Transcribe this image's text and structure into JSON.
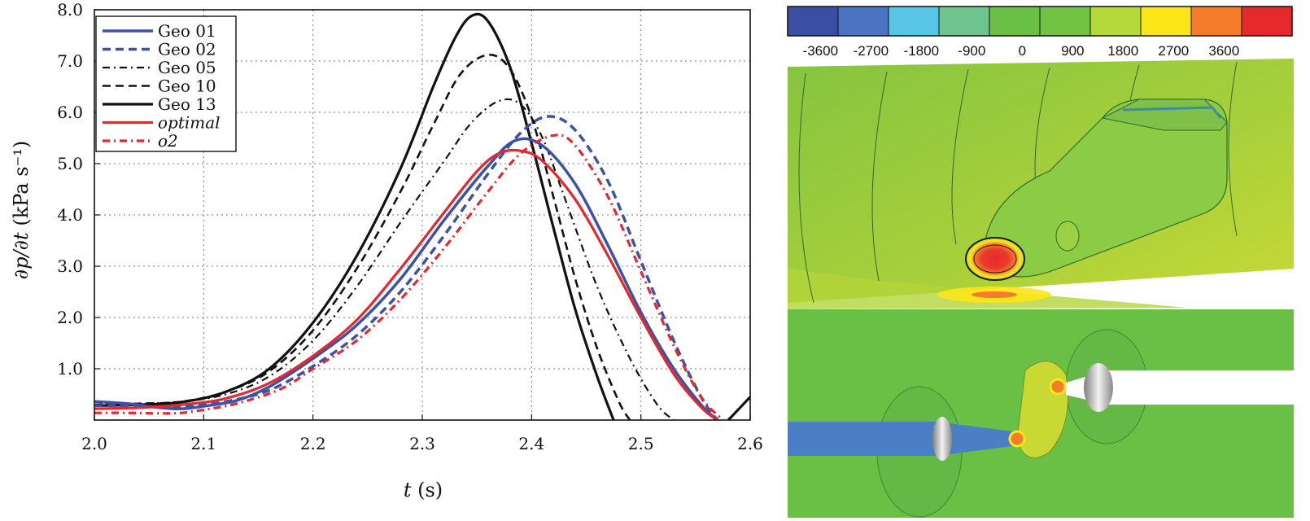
{
  "chart_data": {
    "type": "line",
    "xlabel_var": "t",
    "xlabel_unit": " (s)",
    "ylabel_var": "∂p/∂t",
    "ylabel_unit": " (kPa s⁻¹)",
    "xlim": [
      2.0,
      2.6
    ],
    "ylim": [
      0.0,
      8.0
    ],
    "grid": true,
    "legend_position": "top-left",
    "x_ticks": [
      "2.0",
      "2.1",
      "2.2",
      "2.3",
      "2.4",
      "2.5",
      "2.6"
    ],
    "y_ticks": [
      "1.0",
      "2.0",
      "3.0",
      "4.0",
      "5.0",
      "6.0",
      "7.0",
      "8.0"
    ],
    "series": [
      {
        "name": "Geo 01",
        "color": "#3c52a8",
        "dash": "solid",
        "width": 3.5,
        "points": [
          [
            2.0,
            0.36
          ],
          [
            2.03,
            0.32
          ],
          [
            2.06,
            0.24
          ],
          [
            2.08,
            0.22
          ],
          [
            2.1,
            0.27
          ],
          [
            2.13,
            0.38
          ],
          [
            2.16,
            0.65
          ],
          [
            2.2,
            1.2
          ],
          [
            2.24,
            1.85
          ],
          [
            2.28,
            2.75
          ],
          [
            2.32,
            3.9
          ],
          [
            2.36,
            4.95
          ],
          [
            2.385,
            5.45
          ],
          [
            2.41,
            5.35
          ],
          [
            2.44,
            4.6
          ],
          [
            2.47,
            3.4
          ],
          [
            2.5,
            2.1
          ],
          [
            2.53,
            1.0
          ],
          [
            2.555,
            0.3
          ],
          [
            2.57,
            0.0
          ]
        ]
      },
      {
        "name": "Geo 02",
        "color": "#3c52a8",
        "dash": "dashed",
        "width": 3.5,
        "points": [
          [
            2.0,
            0.28
          ],
          [
            2.03,
            0.28
          ],
          [
            2.06,
            0.25
          ],
          [
            2.09,
            0.28
          ],
          [
            2.12,
            0.36
          ],
          [
            2.16,
            0.58
          ],
          [
            2.2,
            1.05
          ],
          [
            2.24,
            1.65
          ],
          [
            2.28,
            2.5
          ],
          [
            2.32,
            3.6
          ],
          [
            2.36,
            4.8
          ],
          [
            2.39,
            5.6
          ],
          [
            2.415,
            5.92
          ],
          [
            2.44,
            5.65
          ],
          [
            2.47,
            4.65
          ],
          [
            2.5,
            3.1
          ],
          [
            2.53,
            1.55
          ],
          [
            2.555,
            0.45
          ],
          [
            2.57,
            0.0
          ]
        ]
      },
      {
        "name": "Geo 05",
        "color": "#111111",
        "dash": "dashdot",
        "width": 2.2,
        "points": [
          [
            2.0,
            0.3
          ],
          [
            2.04,
            0.32
          ],
          [
            2.08,
            0.36
          ],
          [
            2.12,
            0.5
          ],
          [
            2.16,
            0.85
          ],
          [
            2.2,
            1.55
          ],
          [
            2.24,
            2.6
          ],
          [
            2.28,
            3.85
          ],
          [
            2.32,
            5.05
          ],
          [
            2.345,
            5.8
          ],
          [
            2.37,
            6.22
          ],
          [
            2.39,
            6.15
          ],
          [
            2.41,
            5.5
          ],
          [
            2.43,
            4.35
          ],
          [
            2.46,
            2.6
          ],
          [
            2.49,
            1.2
          ],
          [
            2.515,
            0.3
          ],
          [
            2.53,
            0.0
          ]
        ]
      },
      {
        "name": "Geo 10",
        "color": "#111111",
        "dash": "dashed",
        "width": 2.6,
        "points": [
          [
            2.0,
            0.3
          ],
          [
            2.04,
            0.32
          ],
          [
            2.08,
            0.36
          ],
          [
            2.12,
            0.55
          ],
          [
            2.16,
            0.95
          ],
          [
            2.2,
            1.75
          ],
          [
            2.24,
            2.95
          ],
          [
            2.28,
            4.45
          ],
          [
            2.31,
            5.75
          ],
          [
            2.335,
            6.75
          ],
          [
            2.36,
            7.12
          ],
          [
            2.38,
            6.85
          ],
          [
            2.4,
            5.9
          ],
          [
            2.42,
            4.35
          ],
          [
            2.44,
            2.75
          ],
          [
            2.46,
            1.4
          ],
          [
            2.48,
            0.35
          ],
          [
            2.49,
            0.0
          ]
        ]
      },
      {
        "name": "Geo 13",
        "color": "#111111",
        "dash": "solid",
        "width": 3.2,
        "points": [
          [
            2.0,
            0.28
          ],
          [
            2.04,
            0.3
          ],
          [
            2.08,
            0.35
          ],
          [
            2.12,
            0.55
          ],
          [
            2.16,
            1.0
          ],
          [
            2.2,
            1.9
          ],
          [
            2.24,
            3.2
          ],
          [
            2.28,
            4.9
          ],
          [
            2.31,
            6.5
          ],
          [
            2.33,
            7.45
          ],
          [
            2.345,
            7.88
          ],
          [
            2.36,
            7.78
          ],
          [
            2.38,
            6.9
          ],
          [
            2.4,
            5.4
          ],
          [
            2.42,
            3.75
          ],
          [
            2.44,
            2.15
          ],
          [
            2.46,
            0.85
          ],
          [
            2.475,
            0.0
          ]
        ]
      },
      {
        "name": "optimal",
        "color": "#e8262c",
        "dash": "solid",
        "width": 3.2,
        "points": [
          [
            2.0,
            0.22
          ],
          [
            2.04,
            0.24
          ],
          [
            2.08,
            0.3
          ],
          [
            2.12,
            0.42
          ],
          [
            2.16,
            0.72
          ],
          [
            2.2,
            1.25
          ],
          [
            2.24,
            1.95
          ],
          [
            2.28,
            2.95
          ],
          [
            2.32,
            4.05
          ],
          [
            2.35,
            4.85
          ],
          [
            2.37,
            5.2
          ],
          [
            2.39,
            5.25
          ],
          [
            2.41,
            5.05
          ],
          [
            2.44,
            4.3
          ],
          [
            2.47,
            3.2
          ],
          [
            2.5,
            2.0
          ],
          [
            2.53,
            0.9
          ],
          [
            2.555,
            0.25
          ],
          [
            2.57,
            0.0
          ]
        ]
      },
      {
        "name": "o2",
        "color": "#e8262c",
        "dash": "dashdot",
        "width": 3.2,
        "points": [
          [
            2.0,
            0.14
          ],
          [
            2.03,
            0.14
          ],
          [
            2.06,
            0.13
          ],
          [
            2.08,
            0.14
          ],
          [
            2.1,
            0.2
          ],
          [
            2.13,
            0.32
          ],
          [
            2.17,
            0.6
          ],
          [
            2.2,
            1.0
          ],
          [
            2.24,
            1.55
          ],
          [
            2.28,
            2.35
          ],
          [
            2.32,
            3.35
          ],
          [
            2.36,
            4.45
          ],
          [
            2.39,
            5.2
          ],
          [
            2.42,
            5.55
          ],
          [
            2.44,
            5.35
          ],
          [
            2.47,
            4.35
          ],
          [
            2.5,
            2.9
          ],
          [
            2.53,
            1.45
          ],
          [
            2.555,
            0.45
          ],
          [
            2.575,
            0.0
          ]
        ]
      },
      {
        "name": "",
        "color": "#111111",
        "dash": "solid",
        "width": 3.2,
        "points": [
          [
            2.58,
            0.0
          ],
          [
            2.6,
            0.45
          ]
        ]
      }
    ]
  },
  "colorbar": {
    "colors": [
      "#3a4fa3",
      "#4a74c1",
      "#58c4e6",
      "#6ec58d",
      "#6abf45",
      "#72c243",
      "#b6d93a",
      "#fde618",
      "#f47c2b",
      "#e62a2c"
    ],
    "labels": [
      "-3600",
      "-2700",
      "-1800",
      "-900",
      "0",
      "900",
      "1800",
      "2700",
      "3600"
    ]
  }
}
